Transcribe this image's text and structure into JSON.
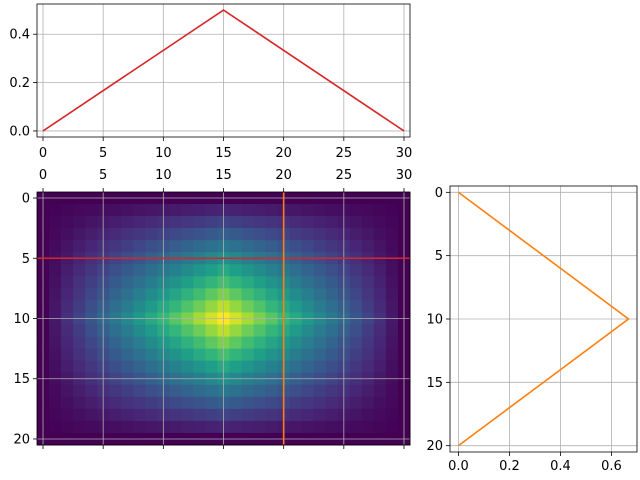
{
  "chart_data": [
    {
      "id": "top",
      "type": "line",
      "title": "",
      "xlabel": "",
      "ylabel": "",
      "xlim": [
        -0.5,
        30.5
      ],
      "ylim": [
        -0.025,
        0.525
      ],
      "xticks": [
        0,
        5,
        10,
        15,
        20,
        25,
        30
      ],
      "yticks": [
        0.0,
        0.2,
        0.4
      ],
      "ytick_labels": [
        "0.0",
        "0.2",
        "0.4"
      ],
      "grid": true,
      "series": [
        {
          "x": [
            0,
            15,
            30
          ],
          "y": [
            0,
            0.5,
            0
          ],
          "color": "#d62728"
        }
      ]
    },
    {
      "id": "heatmap",
      "type": "heatmap",
      "title": "",
      "xlabel": "",
      "ylabel": "",
      "colormap": "viridis",
      "cols": 31,
      "rows": 21,
      "value_range": [
        0,
        1
      ],
      "peak": {
        "x": 15,
        "y": 10
      },
      "xlim": [
        -0.5,
        30.5
      ],
      "ylim": [
        20.5,
        -0.5
      ],
      "xticks_top": [
        0,
        5,
        10,
        15,
        20,
        25,
        30
      ],
      "yticks": [
        0,
        5,
        10,
        15,
        20
      ],
      "grid": true,
      "hline": {
        "y": 5,
        "color": "#d62728"
      },
      "vline": {
        "x": 20,
        "color": "#ff7f0e"
      }
    },
    {
      "id": "right",
      "type": "line",
      "title": "",
      "xlabel": "",
      "ylabel": "",
      "xlim": [
        -0.0333,
        0.7
      ],
      "ylim": [
        20.5,
        -0.5
      ],
      "xticks": [
        0.0,
        0.2,
        0.4,
        0.6
      ],
      "xtick_labels": [
        "0.0",
        "0.2",
        "0.4",
        "0.6"
      ],
      "yticks": [
        0,
        5,
        10,
        15,
        20
      ],
      "grid": true,
      "series": [
        {
          "x": [
            0,
            0.6667,
            0
          ],
          "y": [
            0,
            10,
            20
          ],
          "color": "#ff7f0e"
        }
      ]
    }
  ]
}
